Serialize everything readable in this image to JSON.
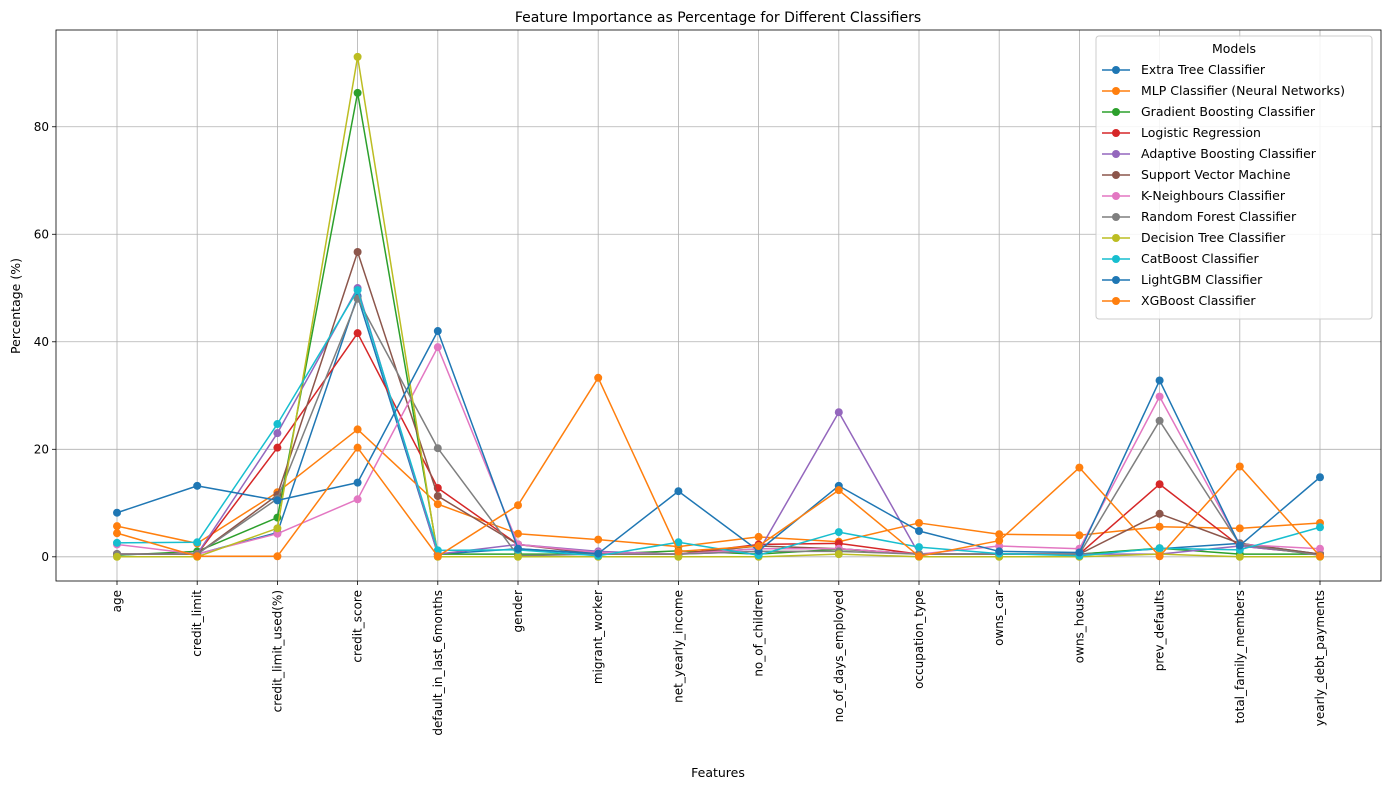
{
  "chart_data": {
    "type": "line",
    "title": "Feature Importance as Percentage for Different Classifiers",
    "xlabel": "Features",
    "ylabel": "Percentage (%)",
    "ylim": [
      -4.5,
      98
    ],
    "yticks": [
      0,
      20,
      40,
      60,
      80
    ],
    "grid": true,
    "legend_title": "Models",
    "legend_position": "top-right",
    "categories": [
      "age",
      "credit_limit",
      "credit_limit_used(%)",
      "credit_score",
      "default_in_last_6months",
      "gender",
      "migrant_worker",
      "net_yearly_income",
      "no_of_children",
      "no_of_days_employed",
      "occupation_type",
      "owns_car",
      "owns_house",
      "prev_defaults",
      "total_family_members",
      "yearly_debt_payments"
    ],
    "series": [
      {
        "name": "Extra Tree Classifier",
        "color": "#1f77b4",
        "values": [
          0.5,
          0.5,
          4.5,
          48.5,
          0.5,
          1.5,
          0.5,
          0.5,
          1.5,
          1.5,
          0.5,
          0.5,
          0.5,
          1.5,
          2.5,
          0.5
        ]
      },
      {
        "name": "MLP Classifier (Neural Networks)",
        "color": "#ff7f0e",
        "values": [
          5.7,
          2.5,
          12.0,
          23.7,
          9.8,
          4.3,
          3.2,
          1.9,
          3.7,
          2.8,
          6.3,
          4.2,
          4.0,
          5.6,
          5.3,
          6.3
        ]
      },
      {
        "name": "Gradient Boosting Classifier",
        "color": "#2ca02c",
        "values": [
          0.3,
          1.0,
          7.3,
          86.3,
          0.5,
          0.5,
          0.5,
          1.1,
          0.5,
          1.4,
          0.5,
          0.5,
          0.5,
          1.6,
          0.5,
          0.5
        ]
      },
      {
        "name": "Logistic Regression",
        "color": "#d62728",
        "values": [
          0.5,
          0.5,
          20.3,
          41.6,
          12.8,
          2.3,
          0.8,
          0.5,
          2.3,
          2.5,
          0.5,
          0.5,
          0.5,
          13.5,
          2.0,
          0.5
        ]
      },
      {
        "name": "Adaptive Boosting Classifier",
        "color": "#9467bd",
        "values": [
          0.5,
          0.5,
          23.0,
          50.0,
          0.5,
          2.3,
          1.0,
          0.5,
          1.0,
          26.9,
          0.5,
          0.5,
          0.5,
          0.5,
          2.0,
          0.5
        ]
      },
      {
        "name": "Support Vector Machine",
        "color": "#8c564b",
        "values": [
          0.5,
          0.5,
          11.5,
          56.7,
          11.3,
          2.3,
          0.5,
          0.5,
          2.0,
          1.5,
          0.5,
          0.5,
          0.5,
          8.0,
          2.5,
          0.5
        ]
      },
      {
        "name": "K-Neighbours Classifier",
        "color": "#e377c2",
        "values": [
          2.3,
          0.5,
          4.3,
          10.7,
          39.0,
          2.3,
          0.8,
          0.5,
          1.5,
          1.5,
          0.5,
          2.0,
          1.5,
          29.8,
          2.3,
          1.5
        ]
      },
      {
        "name": "Random Forest Classifier",
        "color": "#7f7f7f",
        "values": [
          0.5,
          0.5,
          10.8,
          48.0,
          20.2,
          0.2,
          0.5,
          0.5,
          1.0,
          1.0,
          0.5,
          0.5,
          0.5,
          25.3,
          2.3,
          0.3
        ]
      },
      {
        "name": "Decision Tree Classifier",
        "color": "#bcbd22",
        "values": [
          0.0,
          0.0,
          5.3,
          93.0,
          0.0,
          0.0,
          0.0,
          0.0,
          0.0,
          0.5,
          0.0,
          0.0,
          0.0,
          0.5,
          0.0,
          0.0
        ]
      },
      {
        "name": "CatBoost Classifier",
        "color": "#17becf",
        "values": [
          2.6,
          2.7,
          24.7,
          49.6,
          1.2,
          1.3,
          0.2,
          2.7,
          0.3,
          4.6,
          1.8,
          0.6,
          0.2,
          1.6,
          1.3,
          5.5
        ]
      },
      {
        "name": "LightGBM Classifier",
        "color": "#1f77b4",
        "values": [
          8.2,
          13.2,
          10.5,
          13.8,
          42.0,
          1.5,
          0.6,
          12.2,
          1.1,
          13.2,
          4.8,
          1.0,
          0.8,
          32.8,
          2.1,
          14.8
        ]
      },
      {
        "name": "XGBoost Classifier",
        "color": "#ff7f0e",
        "values": [
          4.4,
          0.1,
          0.1,
          20.3,
          0.1,
          9.6,
          33.3,
          1.0,
          2.0,
          12.4,
          0.1,
          3.0,
          16.6,
          0.1,
          16.8,
          0.1
        ]
      }
    ]
  }
}
